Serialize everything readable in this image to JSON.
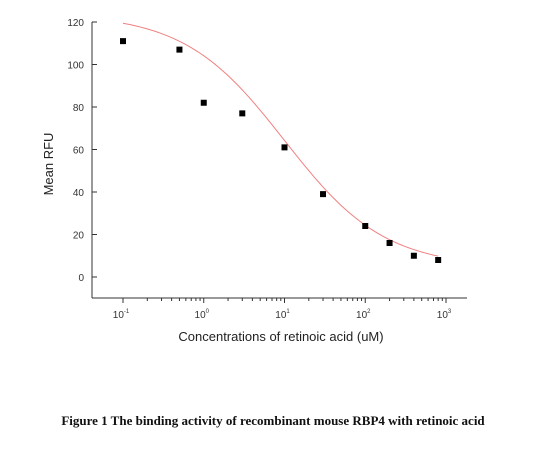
{
  "chart_data": {
    "type": "scatter",
    "xscale": "log10",
    "x": [
      0.1,
      0.5,
      1,
      3,
      10,
      30,
      100,
      200,
      400,
      800
    ],
    "y": [
      111,
      107,
      82,
      77,
      61,
      39,
      24,
      16,
      10,
      8
    ],
    "fit_curve": {
      "type": "sigmoidal-dose-response",
      "color": "#f08080",
      "top": 124,
      "bottom": 4.5,
      "log_ec50": 1.0,
      "hill_slope": -0.7
    },
    "xlabel": "Concentrations of retinoic acid (uM)",
    "ylabel": "Mean RFU",
    "xlim": [
      0.1,
      1000
    ],
    "ylim": [
      -10,
      120
    ],
    "y_ticks": [
      "0",
      "20",
      "40",
      "60",
      "80",
      "100",
      "120"
    ],
    "x_ticks": [
      {
        "base": "10",
        "exp": "-1"
      },
      {
        "base": "10",
        "exp": "0"
      },
      {
        "base": "10",
        "exp": "1"
      },
      {
        "base": "10",
        "exp": "2"
      },
      {
        "base": "10",
        "exp": "3"
      }
    ],
    "marker_color": "#000000",
    "grid": false
  },
  "caption": "Figure 1 The binding activity of recombinant mouse RBP4 with retinoic acid"
}
